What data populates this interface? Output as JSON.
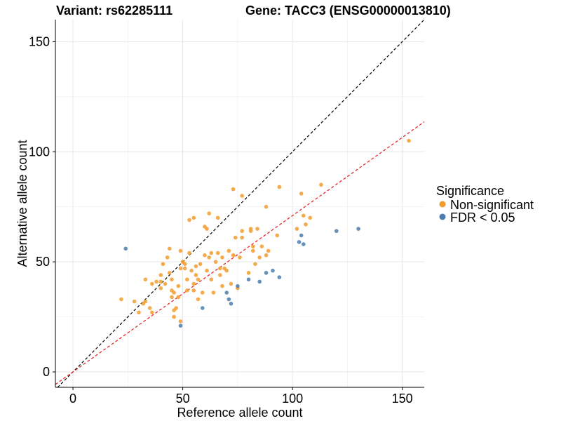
{
  "chart_data": {
    "type": "scatter",
    "title_left": "Variant: rs62285111",
    "title_right": "Gene: TACC3 (ENSG00000013810)",
    "xlabel": "Reference allele count",
    "ylabel": "Alternative allele count",
    "xlim": [
      -8,
      160
    ],
    "ylim": [
      -7,
      160
    ],
    "x_ticks": [
      0,
      50,
      100,
      150
    ],
    "y_ticks": [
      0,
      50,
      100,
      150
    ],
    "grid": true,
    "legend_position": "right",
    "legend": {
      "title": "Significance",
      "items": [
        {
          "label": "Non-significant",
          "color": "#F39C2B"
        },
        {
          "label": "FDR < 0.05",
          "color": "#4A7DAE"
        }
      ]
    },
    "reference_lines": [
      {
        "name": "identity",
        "slope": 1.0,
        "intercept": 0,
        "color": "#000000",
        "style": "dashed"
      },
      {
        "name": "fit",
        "slope": 0.71,
        "intercept": 0,
        "color": "#E41A1C",
        "style": "dashed"
      }
    ],
    "series": [
      {
        "color": "#F39C2B",
        "points": [
          [
            22,
            33
          ],
          [
            28,
            32
          ],
          [
            30,
            27
          ],
          [
            32,
            31
          ],
          [
            33,
            42
          ],
          [
            33,
            32
          ],
          [
            35,
            29
          ],
          [
            36,
            27
          ],
          [
            36,
            40
          ],
          [
            38,
            41
          ],
          [
            40,
            38
          ],
          [
            40,
            41
          ],
          [
            40,
            44
          ],
          [
            41,
            49
          ],
          [
            42,
            40
          ],
          [
            43,
            52
          ],
          [
            44,
            45
          ],
          [
            44,
            56
          ],
          [
            45,
            37
          ],
          [
            45,
            42
          ],
          [
            45,
            34
          ],
          [
            46,
            36
          ],
          [
            46,
            28
          ],
          [
            46,
            25
          ],
          [
            47,
            29
          ],
          [
            48,
            34
          ],
          [
            48,
            39
          ],
          [
            49,
            23
          ],
          [
            49,
            47
          ],
          [
            49,
            55
          ],
          [
            50,
            50
          ],
          [
            51,
            47
          ],
          [
            51,
            49
          ],
          [
            52,
            37
          ],
          [
            52,
            42
          ],
          [
            53,
            54
          ],
          [
            53,
            69
          ],
          [
            54,
            46
          ],
          [
            55,
            40
          ],
          [
            55,
            70
          ],
          [
            55,
            37
          ],
          [
            56,
            44
          ],
          [
            56,
            48
          ],
          [
            57,
            33
          ],
          [
            57,
            42
          ],
          [
            58,
            49
          ],
          [
            59,
            36
          ],
          [
            60,
            53
          ],
          [
            60,
            66
          ],
          [
            61,
            46
          ],
          [
            61,
            65
          ],
          [
            62,
            72
          ],
          [
            62,
            52
          ],
          [
            63,
            42
          ],
          [
            63,
            54
          ],
          [
            64,
            36
          ],
          [
            65,
            50
          ],
          [
            66,
            70
          ],
          [
            66,
            54
          ],
          [
            67,
            44
          ],
          [
            67,
            47
          ],
          [
            68,
            39
          ],
          [
            68,
            52
          ],
          [
            69,
            47
          ],
          [
            70,
            46
          ],
          [
            71,
            55
          ],
          [
            72,
            40
          ],
          [
            73,
            83
          ],
          [
            73,
            53
          ],
          [
            74,
            61
          ],
          [
            75,
            38
          ],
          [
            76,
            52
          ],
          [
            77,
            80
          ],
          [
            77,
            64
          ],
          [
            77,
            61
          ],
          [
            80,
            45
          ],
          [
            81,
            64
          ],
          [
            81,
            65
          ],
          [
            82,
            55
          ],
          [
            82,
            57
          ],
          [
            83,
            49
          ],
          [
            84,
            65
          ],
          [
            85,
            52
          ],
          [
            86,
            57
          ],
          [
            88,
            53
          ],
          [
            88,
            75
          ],
          [
            89,
            55
          ],
          [
            93,
            62
          ],
          [
            94,
            84
          ],
          [
            102,
            65
          ],
          [
            104,
            81
          ],
          [
            105,
            71
          ],
          [
            106,
            67
          ],
          [
            108,
            70
          ],
          [
            113,
            85
          ],
          [
            153,
            105
          ]
        ]
      },
      {
        "color": "#4A7DAE",
        "points": [
          [
            24,
            56
          ],
          [
            49,
            21
          ],
          [
            59,
            29
          ],
          [
            70,
            36
          ],
          [
            71,
            33
          ],
          [
            72,
            31
          ],
          [
            75,
            39
          ],
          [
            80,
            42
          ],
          [
            85,
            41
          ],
          [
            88,
            45
          ],
          [
            91,
            46
          ],
          [
            94,
            43
          ],
          [
            103,
            59
          ],
          [
            104,
            62
          ],
          [
            105,
            58
          ],
          [
            120,
            64
          ],
          [
            130,
            65
          ]
        ]
      }
    ]
  }
}
